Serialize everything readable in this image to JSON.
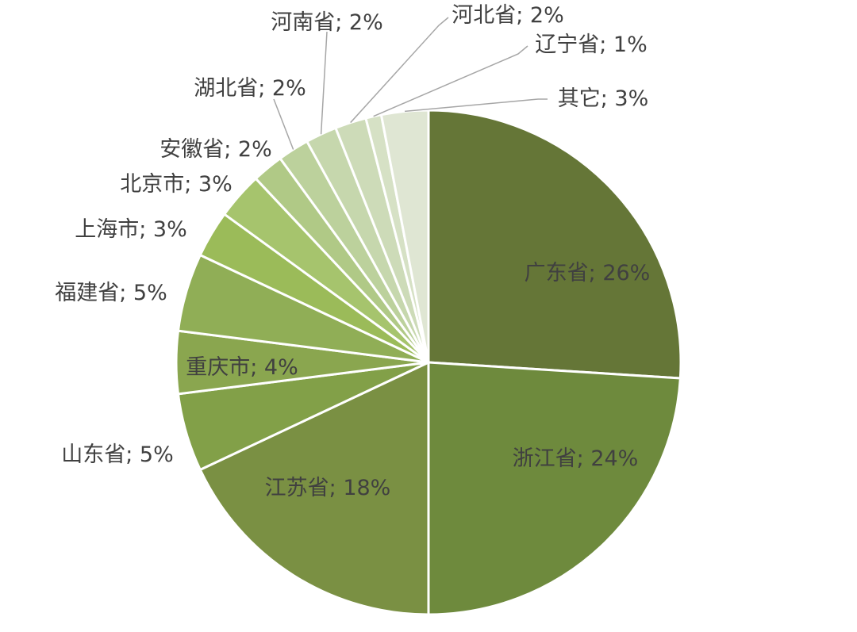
{
  "chart_data": {
    "type": "pie",
    "title": "",
    "start": "top",
    "direction": "clockwise",
    "slices": [
      {
        "label": "广东省",
        "value": 26,
        "text": "广东省; 26%",
        "color": "#657637"
      },
      {
        "label": "浙江省",
        "value": 24,
        "text": "浙江省; 24%",
        "color": "#6e8a3d"
      },
      {
        "label": "江苏省",
        "value": 18,
        "text": "江苏省; 18%",
        "color": "#7a9043"
      },
      {
        "label": "山东省",
        "value": 5,
        "text": "山东省; 5%",
        "color": "#82a048"
      },
      {
        "label": "重庆市",
        "value": 4,
        "text": "重庆市; 4%",
        "color": "#8aa64f"
      },
      {
        "label": "福建省",
        "value": 5,
        "text": "福建省; 5%",
        "color": "#90ae56"
      },
      {
        "label": "上海市",
        "value": 3,
        "text": "上海市; 3%",
        "color": "#9bbb59"
      },
      {
        "label": "北京市",
        "value": 3,
        "text": "北京市; 3%",
        "color": "#a6c46d"
      },
      {
        "label": "安徽省",
        "value": 2,
        "text": "安徽省; 2%",
        "color": "#b0c986"
      },
      {
        "label": "湖北省",
        "value": 2,
        "text": "湖北省; 2%",
        "color": "#bcd19c"
      },
      {
        "label": "河南省",
        "value": 2,
        "text": "河南省; 2%",
        "color": "#c6d7ad"
      },
      {
        "label": "河北省",
        "value": 2,
        "text": "河北省; 2%",
        "color": "#cddbb8"
      },
      {
        "label": "辽宁省",
        "value": 1,
        "text": "辽宁省; 1%",
        "color": "#d6e1c5"
      },
      {
        "label": "其它",
        "value": 3,
        "text": "其它; 3%",
        "color": "#dfe6d3"
      }
    ]
  }
}
